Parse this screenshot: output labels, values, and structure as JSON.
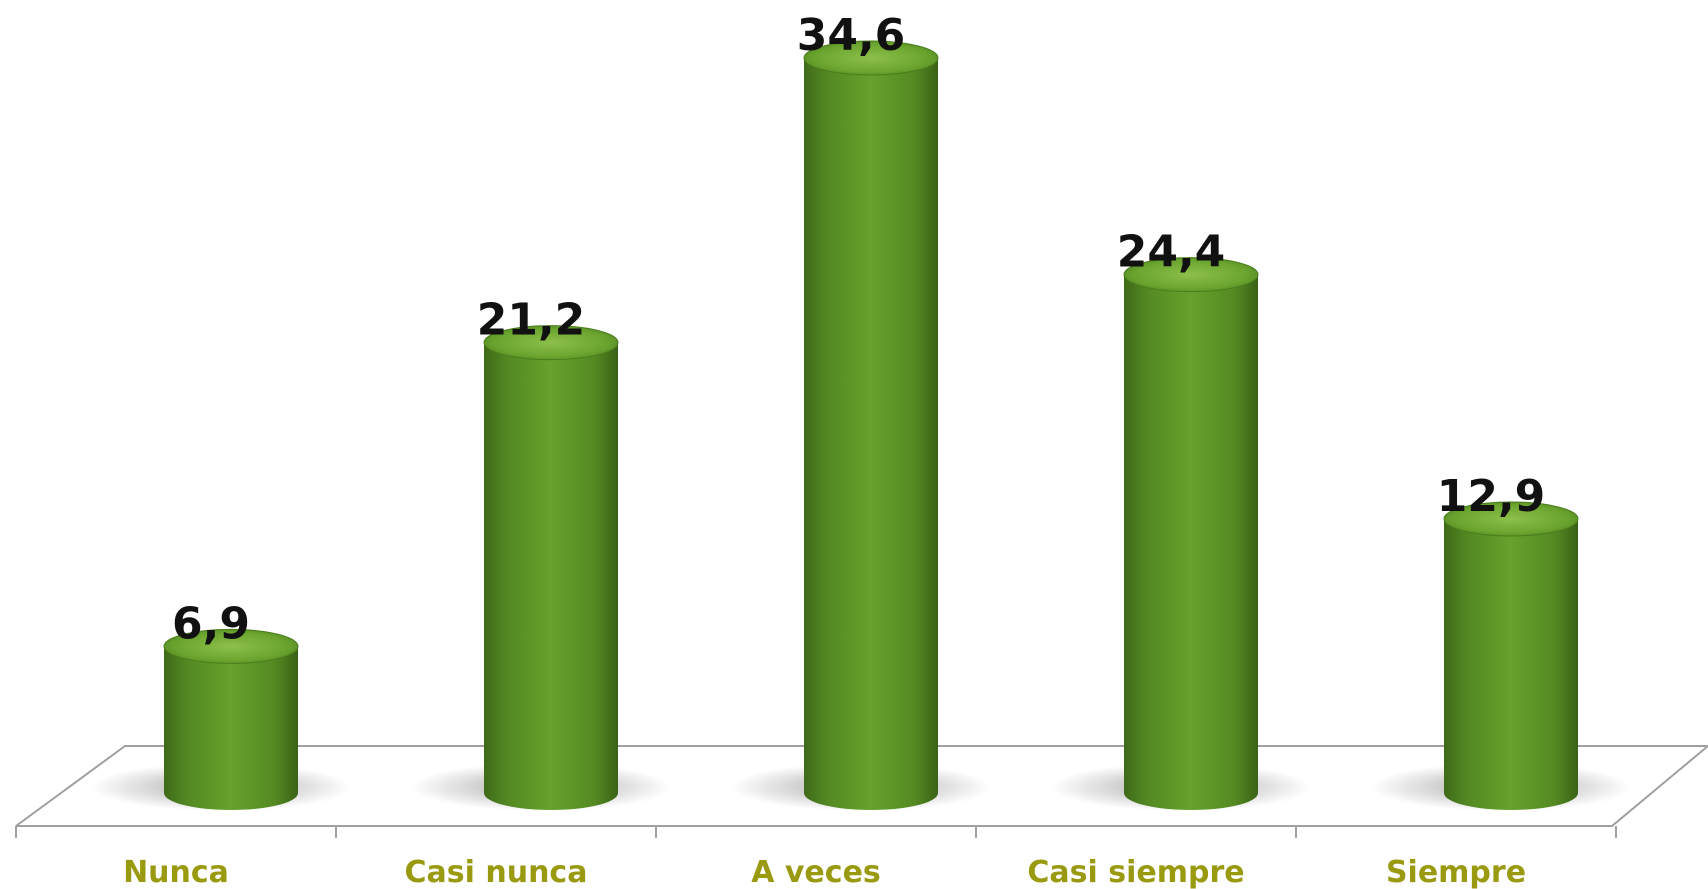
{
  "chart_data": {
    "type": "bar",
    "categories": [
      "Nunca",
      "Casi nunca",
      "A veces",
      "Casi siempre",
      "Siempre"
    ],
    "values": [
      6.9,
      21.2,
      34.6,
      24.4,
      12.9
    ],
    "value_labels": [
      "6,9",
      "21,2",
      "34,6",
      "24,4",
      "12,9"
    ],
    "ylim": [
      0,
      34.6
    ],
    "grid": false,
    "legend": "none",
    "style": "3d-cylinder"
  },
  "colors": {
    "bar": "#5f9a28",
    "bar_dark": "#3f6a18",
    "category_text": "#9a9a10",
    "floor_line": "#a0a0a0"
  }
}
